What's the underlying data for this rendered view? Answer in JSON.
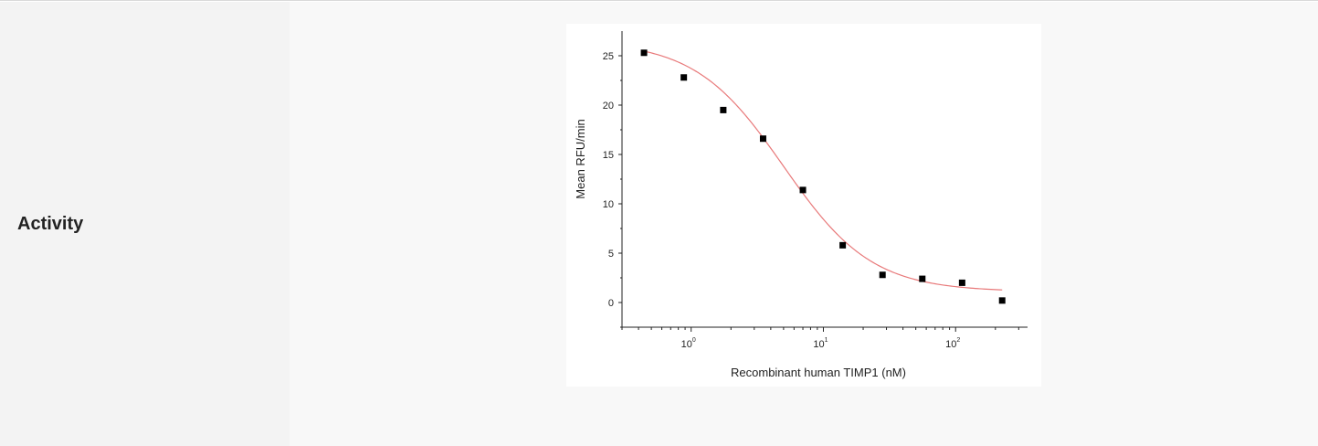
{
  "row": {
    "label": "Activity"
  },
  "chart_data": {
    "type": "scatter",
    "title": "",
    "xlabel": "Recombinant human TIMP1 (nM)",
    "ylabel": "Mean RFU/min",
    "xscale": "log",
    "xlim": [
      0.3,
      350
    ],
    "ylim": [
      -2.5,
      27.5
    ],
    "yticks": [
      0,
      5,
      10,
      15,
      20,
      25
    ],
    "xticks": [
      {
        "value": 1,
        "base": "10",
        "exp": "0"
      },
      {
        "value": 10,
        "base": "10",
        "exp": "1"
      },
      {
        "value": 100,
        "base": "10",
        "exp": "2"
      }
    ],
    "grid": false,
    "legend": "none",
    "series": [
      {
        "marker": "square",
        "color": "#000000",
        "points": [
          {
            "x": 0.44,
            "y": 25.3
          },
          {
            "x": 0.88,
            "y": 22.8
          },
          {
            "x": 1.75,
            "y": 19.5
          },
          {
            "x": 3.5,
            "y": 16.6
          },
          {
            "x": 7.0,
            "y": 11.4
          },
          {
            "x": 14.0,
            "y": 5.8
          },
          {
            "x": 28.0,
            "y": 2.8
          },
          {
            "x": 56.0,
            "y": 2.4
          },
          {
            "x": 112.0,
            "y": 2.0
          },
          {
            "x": 225.0,
            "y": 0.2
          }
        ]
      },
      {
        "marker": "none",
        "line": "fit",
        "color": "#e8797a",
        "fit": {
          "top": 26.5,
          "bottom": 1.1,
          "ic50": 5.0,
          "hill": 1.3
        }
      }
    ]
  }
}
